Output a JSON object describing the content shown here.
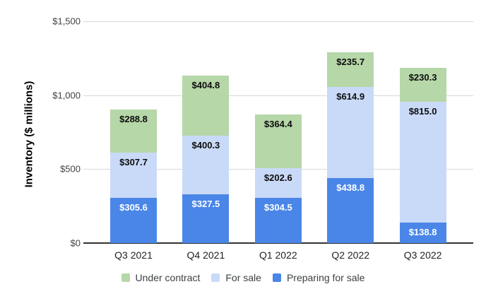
{
  "chart_data": {
    "type": "bar",
    "stacked": true,
    "title": "",
    "ylabel": "Inventory ($ millions)",
    "xlabel": "",
    "categories": [
      "Q3 2021",
      "Q4 2021",
      "Q1 2022",
      "Q2 2022",
      "Q3 2022"
    ],
    "series": [
      {
        "name": "Preparing for sale",
        "color": "#4a86e8",
        "label_color": "#ffffff",
        "values": [
          305.6,
          327.5,
          304.5,
          438.8,
          138.8
        ]
      },
      {
        "name": "For sale",
        "color": "#c9daf8",
        "label_color": "#0d0d0d",
        "values": [
          307.7,
          400.3,
          202.6,
          614.9,
          815.0
        ]
      },
      {
        "name": "Under contract",
        "color": "#b6d7a8",
        "label_color": "#0d0d0d",
        "values": [
          288.8,
          404.8,
          364.4,
          235.7,
          230.3
        ]
      }
    ],
    "legend_order": [
      "Under contract",
      "For sale",
      "Preparing for sale"
    ],
    "legend_position": "bottom",
    "ylim": [
      0,
      1500
    ],
    "y_ticks": [
      {
        "value": 1500,
        "label": "$1,500"
      },
      {
        "value": 1000,
        "label": "$1,000"
      },
      {
        "value": 500,
        "label": "$500"
      },
      {
        "value": 0,
        "label": "$0"
      }
    ],
    "value_label_prefix": "$",
    "grid": true,
    "colors": {
      "gridline": "#d9d9d9",
      "axis_line": "#333333",
      "tick_text": "#424242",
      "category_text": "#222222",
      "legend_text": "#3c4043",
      "background": "#ffffff"
    }
  }
}
